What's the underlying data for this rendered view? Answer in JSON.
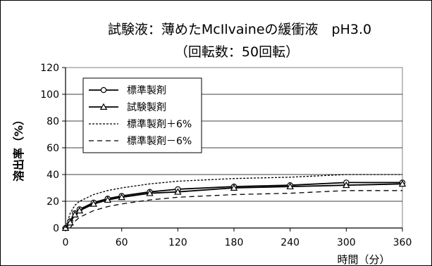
{
  "chart_data": {
    "type": "line",
    "title": "試験液：薄めたMcIlvaineの緩衝液　pH3.0",
    "subtitle": "（回転数：50回転）",
    "xlabel": "時間（分）",
    "ylabel": "溶出率（%）",
    "xlim": [
      0,
      360
    ],
    "ylim": [
      0,
      120
    ],
    "x_ticks": [
      0,
      60,
      120,
      180,
      240,
      300,
      360
    ],
    "y_ticks": [
      0,
      20,
      40,
      60,
      80,
      100,
      120
    ],
    "grid": "horizontal",
    "legend_position": "top-left",
    "series": [
      {
        "name": "標準製剤",
        "style": "solid",
        "marker": "circle",
        "x": [
          0,
          5,
          10,
          15,
          30,
          45,
          60,
          90,
          120,
          180,
          240,
          300,
          360
        ],
        "y": [
          0,
          5,
          11,
          14,
          19,
          22,
          24,
          27,
          29,
          31,
          32,
          34,
          34
        ]
      },
      {
        "name": "試験製剤",
        "style": "solid",
        "marker": "triangle",
        "x": [
          0,
          5,
          10,
          15,
          30,
          45,
          60,
          90,
          120,
          180,
          240,
          300,
          360
        ],
        "y": [
          0,
          4,
          10,
          13,
          18,
          21,
          23,
          26,
          27,
          30,
          31,
          32,
          33
        ]
      },
      {
        "name": "標準製剤＋6%",
        "style": "dotted",
        "marker": "none",
        "x": [
          0,
          5,
          10,
          15,
          30,
          45,
          60,
          90,
          120,
          180,
          240,
          300,
          360
        ],
        "y": [
          0,
          11,
          17,
          20,
          25,
          28,
          30,
          33,
          35,
          37,
          38,
          40,
          40
        ]
      },
      {
        "name": "標準製剤－6%",
        "style": "dashed",
        "marker": "none",
        "x": [
          5,
          10,
          15,
          30,
          45,
          60,
          90,
          120,
          180,
          240,
          300,
          360
        ],
        "y": [
          0,
          5,
          8,
          13,
          16,
          18,
          21,
          23,
          25,
          26,
          28,
          28
        ]
      }
    ]
  }
}
